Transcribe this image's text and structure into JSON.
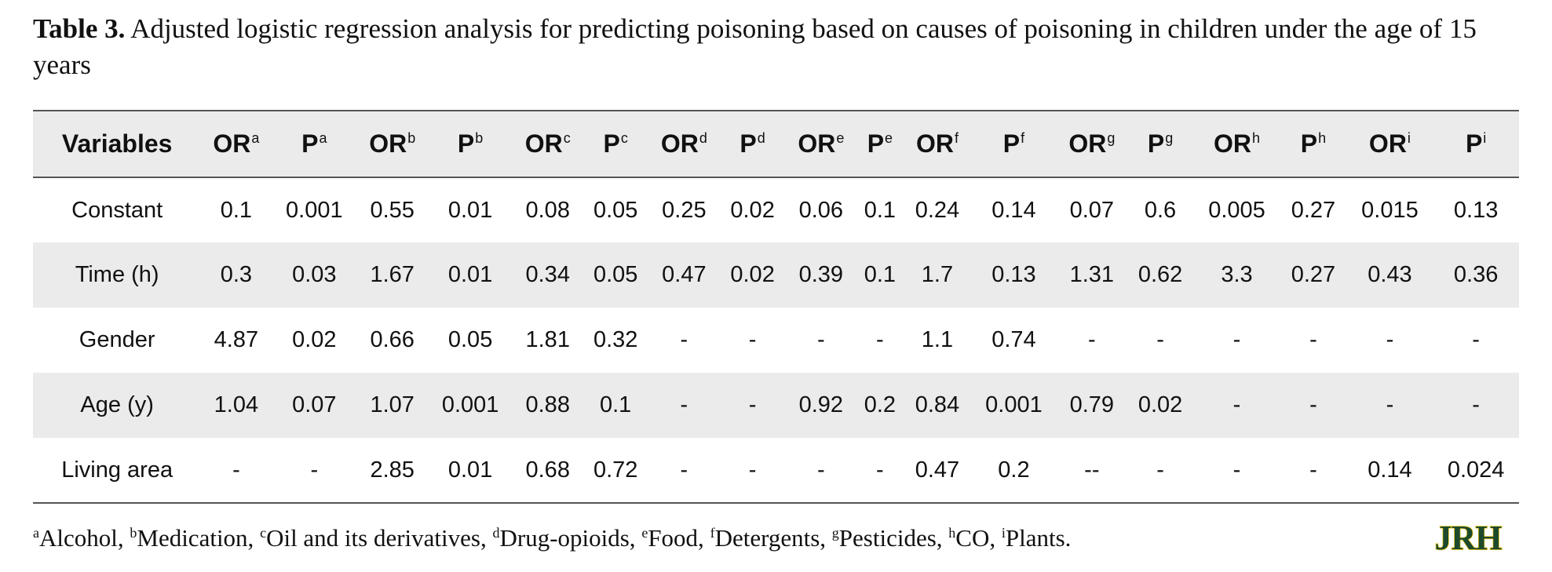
{
  "caption": {
    "label": "Table 3.",
    "text": " Adjusted logistic regression analysis for predicting poisoning based on causes of poisoning in children under the age of 15 years"
  },
  "table": {
    "first_header": "Variables",
    "headers": [
      {
        "base": "OR",
        "sup": "a"
      },
      {
        "base": "P",
        "sup": "a"
      },
      {
        "base": "OR",
        "sup": "b"
      },
      {
        "base": "P",
        "sup": "b"
      },
      {
        "base": "OR",
        "sup": "c"
      },
      {
        "base": "P",
        "sup": "c"
      },
      {
        "base": "OR",
        "sup": "d"
      },
      {
        "base": "P",
        "sup": "d"
      },
      {
        "base": "OR",
        "sup": "e"
      },
      {
        "base": "P",
        "sup": "e"
      },
      {
        "base": "OR",
        "sup": "f"
      },
      {
        "base": "P",
        "sup": "f"
      },
      {
        "base": "OR",
        "sup": "g"
      },
      {
        "base": "P",
        "sup": "g"
      },
      {
        "base": "OR",
        "sup": "h"
      },
      {
        "base": "P",
        "sup": "h"
      },
      {
        "base": "OR",
        "sup": "i"
      },
      {
        "base": "P",
        "sup": "i"
      }
    ],
    "rows": [
      {
        "label": "Constant",
        "cells": [
          "0.1",
          "0.001",
          "0.55",
          "0.01",
          "0.08",
          "0.05",
          "0.25",
          "0.02",
          "0.06",
          "0.1",
          "0.24",
          "0.14",
          "0.07",
          "0.6",
          "0.005",
          "0.27",
          "0.015",
          "0.13"
        ]
      },
      {
        "label": "Time (h)",
        "cells": [
          "0.3",
          "0.03",
          "1.67",
          "0.01",
          "0.34",
          "0.05",
          "0.47",
          "0.02",
          "0.39",
          "0.1",
          "1.7",
          "0.13",
          "1.31",
          "0.62",
          "3.3",
          "0.27",
          "0.43",
          "0.36"
        ]
      },
      {
        "label": "Gender",
        "cells": [
          "4.87",
          "0.02",
          "0.66",
          "0.05",
          "1.81",
          "0.32",
          "-",
          "-",
          "-",
          "-",
          "1.1",
          "0.74",
          "-",
          "-",
          "-",
          "-",
          "-",
          "-"
        ]
      },
      {
        "label": "Age (y)",
        "cells": [
          "1.04",
          "0.07",
          "1.07",
          "0.001",
          "0.88",
          "0.1",
          "-",
          "-",
          "0.92",
          "0.2",
          "0.84",
          "0.001",
          "0.79",
          "0.02",
          "-",
          "-",
          "-",
          "-"
        ]
      },
      {
        "label": "Living area",
        "cells": [
          "-",
          "-",
          "2.85",
          "0.01",
          "0.68",
          "0.72",
          "-",
          "-",
          "-",
          "-",
          "0.47",
          "0.2",
          "--",
          "-",
          "-",
          "-",
          "0.14",
          "0.024"
        ]
      }
    ]
  },
  "footnote": [
    {
      "sup": "a",
      "text": "Alcohol, "
    },
    {
      "sup": "b",
      "text": "Medication, "
    },
    {
      "sup": "c",
      "text": "Oil and its derivatives, "
    },
    {
      "sup": "d",
      "text": "Drug-opioids, "
    },
    {
      "sup": "e",
      "text": "Food, "
    },
    {
      "sup": "f",
      "text": "Detergents, "
    },
    {
      "sup": "g",
      "text": "Pesticides, "
    },
    {
      "sup": "h",
      "text": "CO, "
    },
    {
      "sup": "i",
      "text": "Plants."
    }
  ],
  "logo": {
    "text": "JRH",
    "fill_color": "#1d4a2c",
    "accent_color": "#f0c419"
  }
}
